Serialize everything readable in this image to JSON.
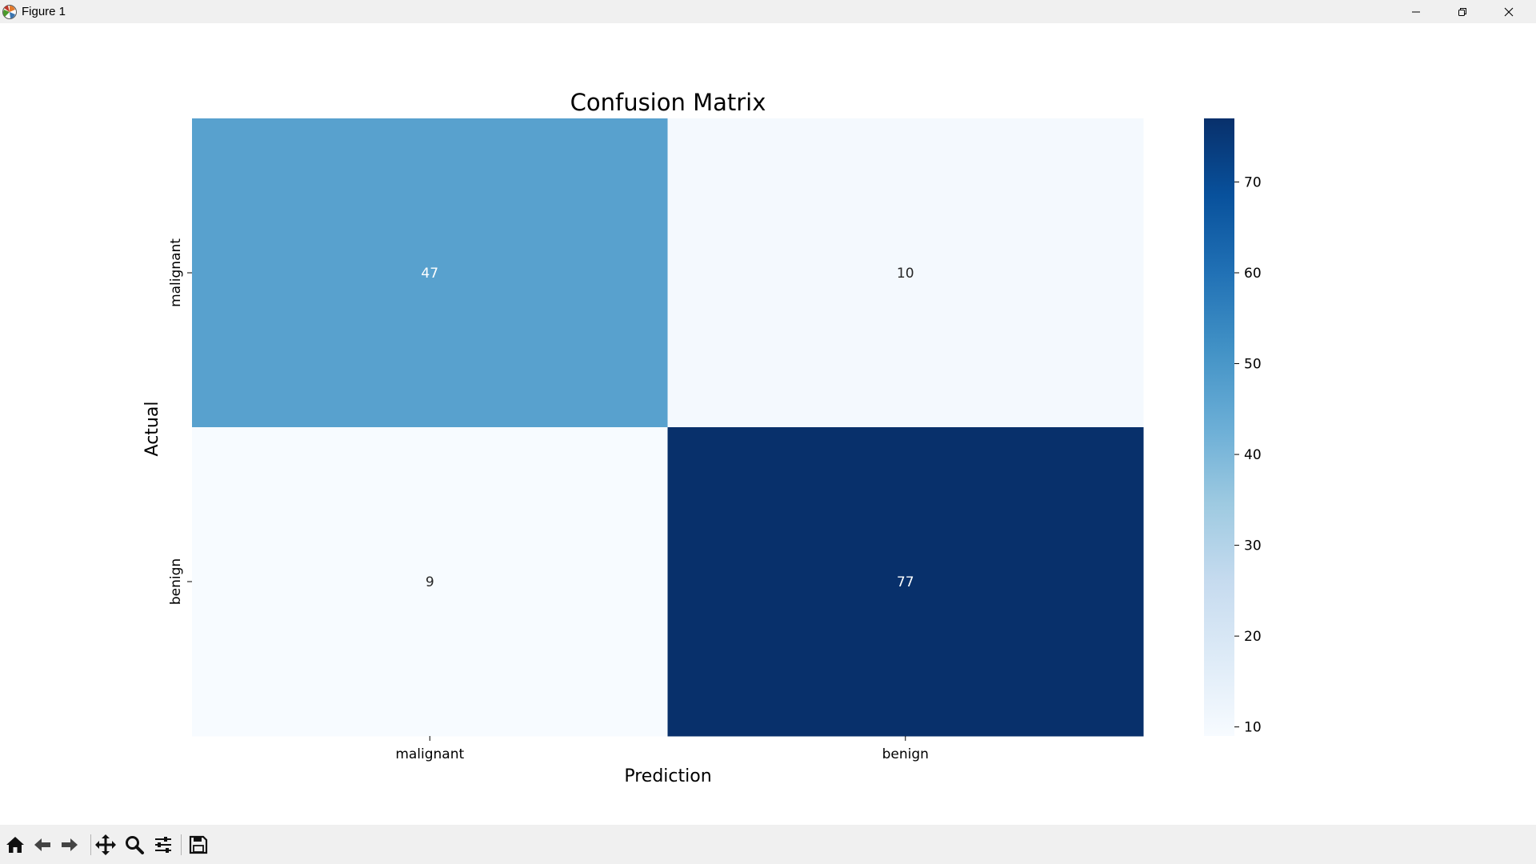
{
  "window": {
    "title": "Figure 1"
  },
  "toolbar": {
    "items": [
      "home-icon",
      "back-icon",
      "forward-icon",
      "pan-icon",
      "zoom-icon",
      "configure-icon",
      "save-icon"
    ]
  },
  "chart_data": {
    "type": "heatmap",
    "title": "Confusion Matrix",
    "xlabel": "Prediction",
    "ylabel": "Actual",
    "x_categories": [
      "malignant",
      "benign"
    ],
    "y_categories": [
      "malignant",
      "benign"
    ],
    "values": [
      [
        47,
        10
      ],
      [
        9,
        77
      ]
    ],
    "colormap": "Blues",
    "colorbar": {
      "min": 9,
      "max": 77,
      "ticks": [
        10,
        20,
        30,
        40,
        50,
        60,
        70
      ]
    },
    "grid": false
  }
}
